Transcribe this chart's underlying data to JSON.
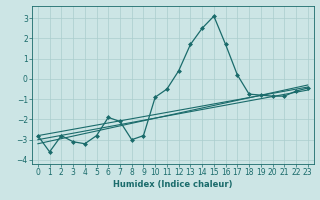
{
  "xlabel": "Humidex (Indice chaleur)",
  "ylabel": "",
  "background_color": "#cce5e5",
  "grid_color": "#aacece",
  "line_color": "#1a6b6b",
  "marker": "D",
  "markersize": 2.0,
  "linewidth": 0.9,
  "xlim": [
    -0.5,
    23.5
  ],
  "ylim": [
    -4.2,
    3.6
  ],
  "yticks": [
    -4,
    -3,
    -2,
    -1,
    0,
    1,
    2,
    3
  ],
  "xticks": [
    0,
    1,
    2,
    3,
    4,
    5,
    6,
    7,
    8,
    9,
    10,
    11,
    12,
    13,
    14,
    15,
    16,
    17,
    18,
    19,
    20,
    21,
    22,
    23
  ],
  "main_x": [
    0,
    1,
    2,
    3,
    4,
    5,
    6,
    7,
    8,
    9,
    10,
    11,
    12,
    13,
    14,
    15,
    16,
    17,
    18,
    19,
    20,
    21,
    22,
    23
  ],
  "main_y": [
    -2.8,
    -3.6,
    -2.8,
    -3.1,
    -3.2,
    -2.8,
    -1.9,
    -2.1,
    -3.0,
    -2.8,
    -0.9,
    -0.5,
    0.4,
    1.7,
    2.5,
    3.1,
    1.7,
    0.2,
    -0.75,
    -0.8,
    -0.85,
    -0.85,
    -0.6,
    -0.45
  ],
  "trend_lines": [
    {
      "x": [
        0,
        23
      ],
      "y": [
        -2.8,
        -0.4
      ]
    },
    {
      "x": [
        0,
        23
      ],
      "y": [
        -3.0,
        -0.55
      ]
    },
    {
      "x": [
        0,
        23
      ],
      "y": [
        -3.2,
        -0.3
      ]
    }
  ],
  "tick_fontsize": 5.5,
  "xlabel_fontsize": 6.0
}
